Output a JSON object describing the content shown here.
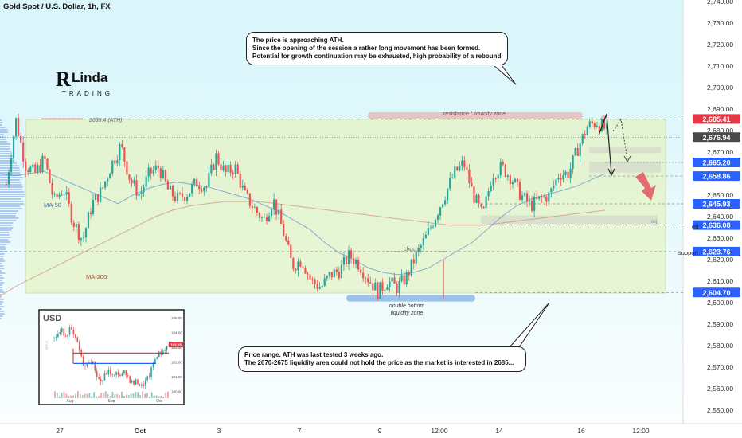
{
  "header": {
    "symbol_title": "Gold Spot / U.S. Dollar, 1h, FX"
  },
  "logo": {
    "letter": "R",
    "word": "Linda",
    "word2": "TRADING"
  },
  "notes": {
    "top": [
      "The price is approaching ATH.",
      "Since the opening of the session a rather long movement has been formed.",
      "Potential for growth continuation may be exhausted, high probability of a rebound"
    ],
    "bottom": [
      "Price range. ATH was last tested 3 weeks ago.",
      "The 2670-2675 liquidity area could not hold the price as the market is interested in 2685..."
    ]
  },
  "labels": {
    "ath": "2685.4 (ATH)",
    "resistance": "resistance / liquidity zone",
    "ma50": "MA-50",
    "ma200": "MA-200",
    "choch": "choch",
    "double_bottom": "double bottom",
    "liquidity_zone": "liquidity zone",
    "eq_small": "eq",
    "eq": "eq",
    "support": "support"
  },
  "price_tags": [
    {
      "value": "2,685.41",
      "color": "#e53945"
    },
    {
      "value": "2,676.94",
      "color": "#4a4a4a"
    },
    {
      "value": "2,665.20",
      "color": "#2962ff"
    },
    {
      "value": "2,658.86",
      "color": "#2962ff"
    },
    {
      "value": "2,645.93",
      "color": "#2962ff"
    },
    {
      "value": "2,636.08",
      "color": "#2962ff"
    },
    {
      "value": "2,623.76",
      "color": "#2962ff"
    },
    {
      "value": "2,604.70",
      "color": "#2962ff"
    }
  ],
  "chart_data": {
    "type": "candlestick",
    "title": "Gold Spot / U.S. Dollar, 1h, FX",
    "y_ticks": [
      "2,550.00",
      "2,560.00",
      "2,570.00",
      "2,580.00",
      "2,590.00",
      "2,600.00",
      "2,610.00",
      "2,620.00",
      "2,630.00",
      "2,640.00",
      "2,650.00",
      "2,660.00",
      "2,670.00",
      "2,680.00",
      "2,690.00",
      "2,700.00",
      "2,710.00",
      "2,720.00",
      "2,730.00",
      "2,740.00"
    ],
    "y_tick_values": [
      2550,
      2560,
      2570,
      2580,
      2590,
      2600,
      2610,
      2620,
      2630,
      2640,
      2650,
      2660,
      2670,
      2680,
      2690,
      2700,
      2710,
      2720,
      2730,
      2740
    ],
    "ylim": [
      2544,
      2743
    ],
    "x_ticks": [
      "27",
      "Oct",
      "3",
      "7",
      "9",
      "12:00",
      "14",
      "16",
      "12:00"
    ],
    "levels": {
      "ath": 2685.41,
      "resistance_zone": [
        2685.5,
        2688.5
      ],
      "liquidity_top": [
        2669.5,
        2672.5
      ],
      "liquidity_mid": [
        2660.5,
        2665.5
      ],
      "zone_eq": [
        2636.5,
        2640.5
      ],
      "eq": 2636.08,
      "support": 2623.76,
      "double_bottom_zone": [
        2600.5,
        2603.5
      ],
      "range": [
        2604.7,
        2685.41
      ],
      "current": 2676.94
    },
    "price_path": [
      2655,
      2685,
      2664,
      2660,
      2667,
      2647,
      2653,
      2638,
      2629,
      2646,
      2652,
      2664,
      2673,
      2657,
      2650,
      2660,
      2663,
      2652,
      2648,
      2651,
      2656,
      2654,
      2668,
      2660,
      2663,
      2650,
      2644,
      2638,
      2648,
      2634,
      2617,
      2620,
      2610,
      2607,
      2613,
      2615,
      2622,
      2618,
      2611,
      2605,
      2610,
      2607,
      2612,
      2622,
      2630,
      2640,
      2650,
      2660,
      2665,
      2650,
      2640,
      2660,
      2663,
      2658,
      2650,
      2645,
      2648,
      2650,
      2660,
      2660,
      2672,
      2682,
      2684,
      2680
    ],
    "ma50_path": [
      2660,
      2659,
      2660,
      2661,
      2658,
      2655,
      2652,
      2649,
      2646,
      2650,
      2653,
      2655,
      2656,
      2655,
      2654,
      2652,
      2650,
      2648,
      2645,
      2642,
      2638,
      2634,
      2628,
      2623,
      2620,
      2616,
      2614,
      2613,
      2614,
      2616,
      2620,
      2624,
      2628,
      2634,
      2640,
      2645,
      2648,
      2650,
      2652,
      2654,
      2657,
      2660
    ],
    "ma200_path": [
      2603,
      2608,
      2612,
      2616,
      2620,
      2624,
      2628,
      2632,
      2636,
      2640,
      2643,
      2645,
      2646,
      2647,
      2647,
      2647,
      2646,
      2645,
      2644,
      2643,
      2642,
      2641,
      2640,
      2639,
      2638,
      2637,
      2636,
      2636,
      2636,
      2637,
      2638,
      2639,
      2640,
      2641,
      2642,
      2643
    ]
  },
  "inset": {
    "title": "USD",
    "x_ticks": [
      "Aug",
      "Sep",
      "Oct"
    ],
    "y_ticks": [
      "105.00",
      "104.00",
      "103.00",
      "102.00",
      "101.00",
      "100.00"
    ],
    "price_tag": "103.18",
    "side_label": "DXY D",
    "path": [
      103.6,
      103.9,
      104.1,
      103.8,
      104.3,
      103.7,
      103.2,
      102.1,
      101.6,
      102.2,
      101.8,
      100.9,
      100.6,
      101.2,
      101.4,
      100.9,
      101.3,
      101.0,
      101.4,
      100.8,
      100.5,
      100.7,
      100.3,
      100.6,
      101.0,
      101.8,
      102.5,
      102.6,
      102.9,
      103.18
    ]
  }
}
